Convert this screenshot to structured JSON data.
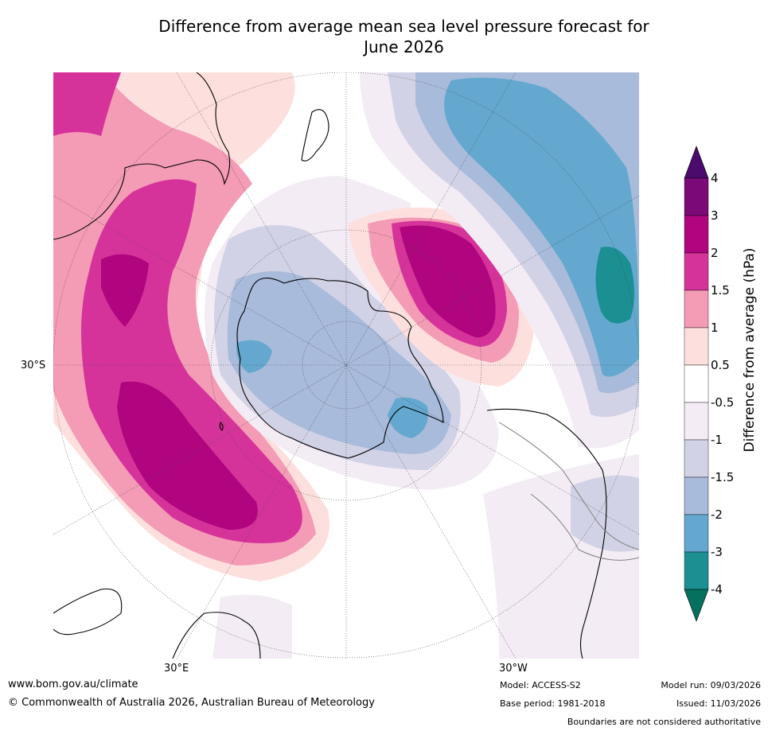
{
  "title_line1": "Difference from average mean sea level pressure forecast for",
  "title_line2": "June 2026",
  "map": {
    "projection": "South polar stereographic",
    "lat_label": "30°S",
    "lon_labels": {
      "east": "30°E",
      "west": "30°W"
    }
  },
  "colorbar": {
    "label": "Difference from average (hPa)",
    "ticks": [
      "4",
      "3",
      "2",
      "1.5",
      "1",
      "0.5",
      "-0.5",
      "-1",
      "-1.5",
      "-2",
      "-3",
      "-4"
    ],
    "colors": [
      "#4a0a6e",
      "#7b0a78",
      "#b0057e",
      "#d6339a",
      "#f49bb6",
      "#fde0de",
      "#ffffff",
      "#f3ecf5",
      "#d2d2e6",
      "#a8bbdb",
      "#64a8cf",
      "#1b8f92",
      "#05705e"
    ]
  },
  "footer": {
    "website": "www.bom.gov.au/climate",
    "copyright": "© Commonwealth of Australia 2026, Australian Bureau of Meteorology",
    "model": "Model: ACCESS-S2",
    "base_period": "Base period: 1981-2018",
    "model_run": "Model run: 09/03/2026",
    "issued": "Issued: 11/03/2026",
    "disclaimer": "Boundaries are not considered authoritative"
  }
}
